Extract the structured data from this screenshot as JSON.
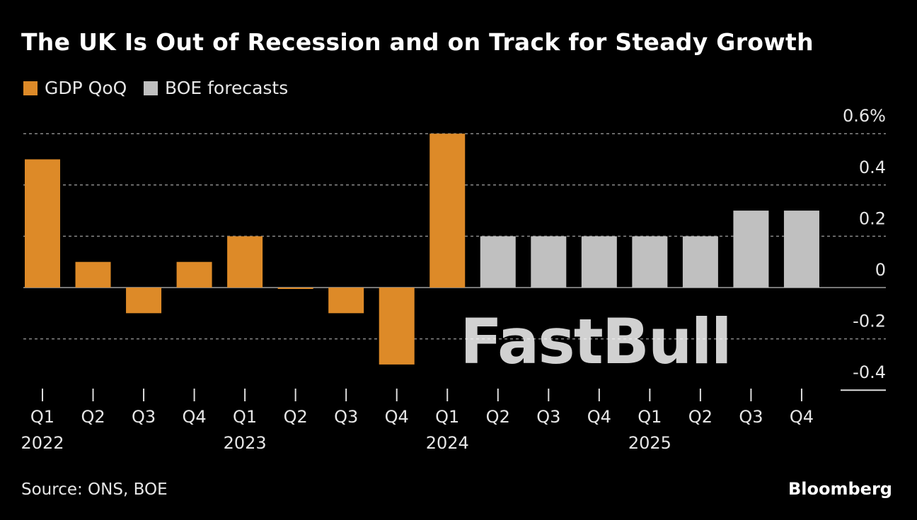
{
  "title": "The UK Is Out of Recession and on Track for Steady Growth",
  "legend": [
    {
      "label": "GDP QoQ",
      "color": "#dd8a28"
    },
    {
      "label": "BOE forecasts",
      "color": "#c0c0c0"
    }
  ],
  "source": "Source: ONS, BOE",
  "watermark": "FastBull",
  "brand": "Bloomberg",
  "chart_data": {
    "type": "bar",
    "title": "The UK Is Out of Recession and on Track for Steady Growth",
    "categories": [
      "Q1 2022",
      "Q2 2022",
      "Q3 2022",
      "Q4 2022",
      "Q1 2023",
      "Q2 2023",
      "Q3 2023",
      "Q4 2023",
      "Q1 2024",
      "Q2 2024",
      "Q3 2024",
      "Q4 2024",
      "Q1 2025",
      "Q2 2025",
      "Q3 2025",
      "Q4 2025"
    ],
    "quarter_labels": [
      "Q1",
      "Q2",
      "Q3",
      "Q4",
      "Q1",
      "Q2",
      "Q3",
      "Q4",
      "Q1",
      "Q2",
      "Q3",
      "Q4",
      "Q1",
      "Q2",
      "Q3",
      "Q4"
    ],
    "year_labels": [
      {
        "index": 0,
        "label": "2022"
      },
      {
        "index": 4,
        "label": "2023"
      },
      {
        "index": 8,
        "label": "2024"
      },
      {
        "index": 12,
        "label": "2025"
      }
    ],
    "series": [
      {
        "name": "GDP QoQ",
        "color": "#dd8a28",
        "values": [
          0.5,
          0.1,
          -0.1,
          0.1,
          0.2,
          0.0,
          -0.1,
          -0.3,
          0.6,
          null,
          null,
          null,
          null,
          null,
          null,
          null
        ]
      },
      {
        "name": "BOE forecasts",
        "color": "#c0c0c0",
        "values": [
          null,
          null,
          null,
          null,
          null,
          null,
          null,
          null,
          null,
          0.2,
          0.2,
          0.2,
          0.2,
          0.2,
          0.3,
          0.3
        ]
      }
    ],
    "yticks": [
      0.6,
      0.4,
      0.2,
      0,
      -0.2,
      -0.4
    ],
    "ytick_labels": [
      "0.6%",
      "0.4",
      "0.2",
      "0",
      "-0.2",
      "-0.4"
    ],
    "ylim": [
      -0.4,
      0.6
    ],
    "grid": true,
    "legend_position": "top-left"
  }
}
